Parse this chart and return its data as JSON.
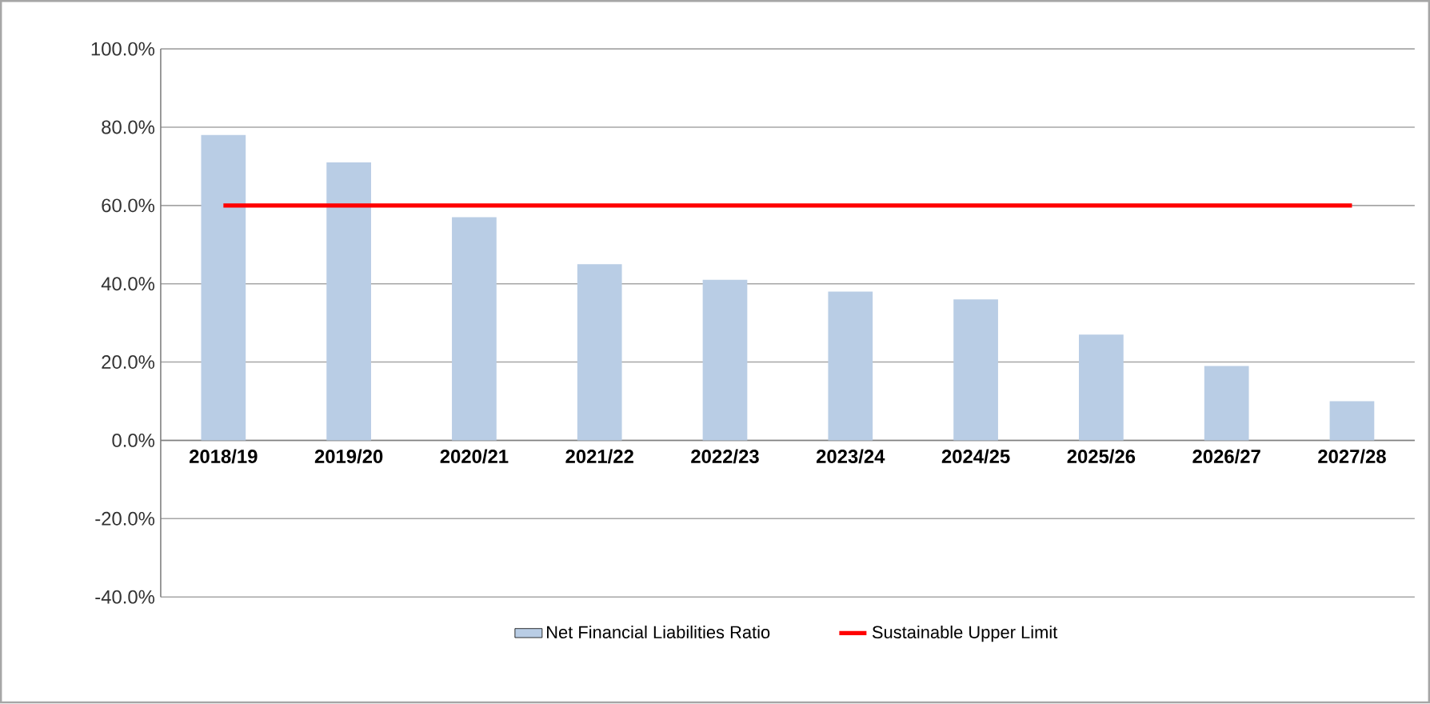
{
  "chart_data": {
    "type": "bar",
    "categories": [
      "2018/19",
      "2019/20",
      "2020/21",
      "2021/22",
      "2022/23",
      "2023/24",
      "2024/25",
      "2025/26",
      "2026/27",
      "2027/28"
    ],
    "series": [
      {
        "name": "Net Financial Liabilities Ratio",
        "color": "#b9cde5",
        "values": [
          78,
          71,
          57,
          45,
          41,
          38,
          36,
          27,
          19,
          10
        ]
      },
      {
        "name": "Sustainable Upper Limit",
        "type": "line",
        "color": "#ff0000",
        "values": [
          60,
          60,
          60,
          60,
          60,
          60,
          60,
          60,
          60,
          60
        ]
      }
    ],
    "ylim": [
      -40,
      100
    ],
    "yticks": [
      {
        "value": -40,
        "label": "-40.0%"
      },
      {
        "value": -20,
        "label": "-20.0%"
      },
      {
        "value": 0,
        "label": "0.0%"
      },
      {
        "value": 20,
        "label": "20.0%"
      },
      {
        "value": 40,
        "label": "40.0%"
      },
      {
        "value": 60,
        "label": "60.0%"
      },
      {
        "value": 80,
        "label": "80.0%"
      },
      {
        "value": 100,
        "label": "100.0%"
      }
    ],
    "grid": "y",
    "legend": "bottom",
    "marker": "none",
    "line_style": "solid"
  }
}
